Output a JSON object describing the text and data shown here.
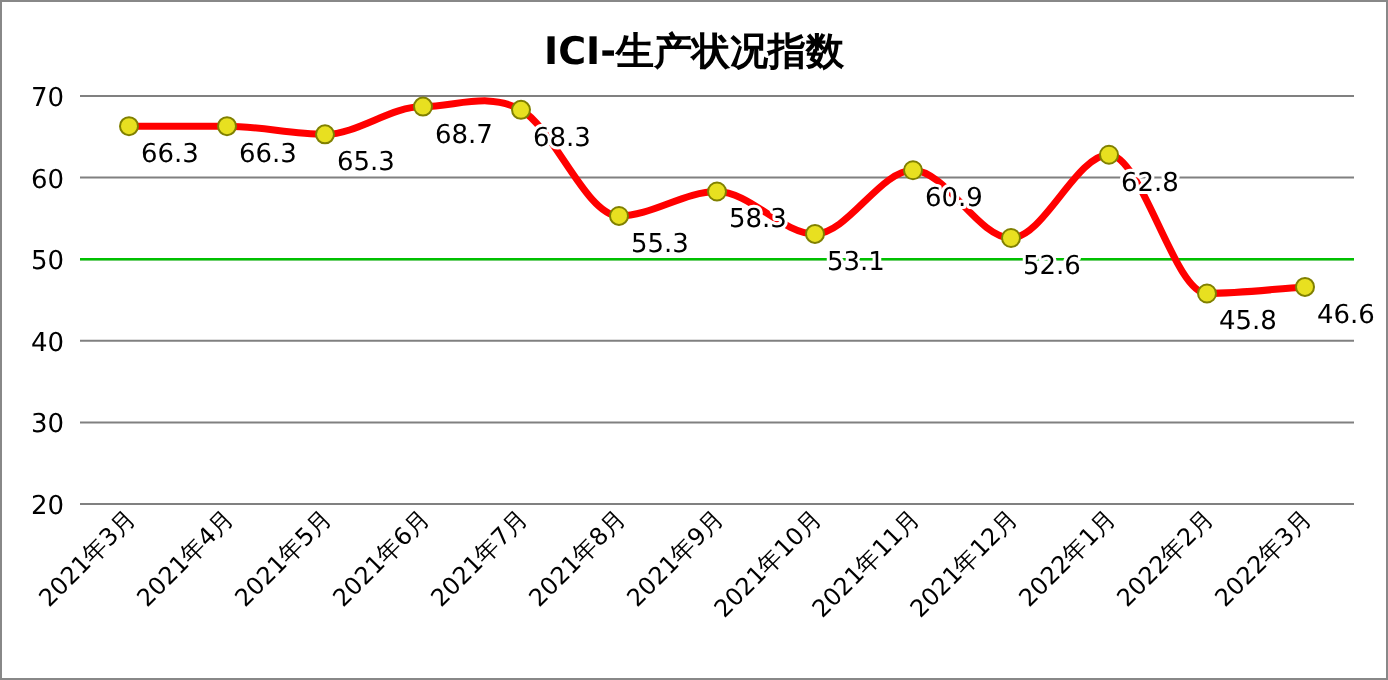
{
  "chart_data": {
    "type": "line",
    "title": "ICI-生产状况指数",
    "categories": [
      "2021年3月",
      "2021年4月",
      "2021年5月",
      "2021年6月",
      "2021年7月",
      "2021年8月",
      "2021年9月",
      "2021年10月",
      "2021年11月",
      "2021年12月",
      "2022年1月",
      "2022年2月",
      "2022年3月"
    ],
    "series": [
      {
        "color": "#ff0000",
        "values": [
          66.3,
          66.3,
          65.3,
          68.7,
          68.3,
          55.3,
          58.3,
          53.1,
          60.9,
          52.6,
          62.8,
          45.8,
          46.6
        ]
      }
    ],
    "ylim": [
      20,
      70
    ],
    "yticks": [
      20,
      30,
      40,
      50,
      60,
      70
    ],
    "grid": "y",
    "marker": "circle",
    "data_labels": true,
    "ref_lines": [
      {
        "axis": "y",
        "value": 50,
        "color": "#00c000"
      }
    ]
  }
}
